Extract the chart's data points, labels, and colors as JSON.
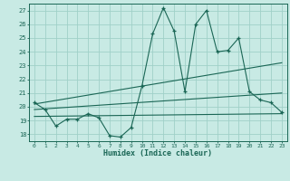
{
  "title": "",
  "xlabel": "Humidex (Indice chaleur)",
  "ylabel": "",
  "bg_color": "#c8eae4",
  "grid_color": "#a0d0c8",
  "line_color": "#1a6655",
  "xlim": [
    -0.5,
    23.5
  ],
  "ylim": [
    17.5,
    27.5
  ],
  "xticks": [
    0,
    1,
    2,
    3,
    4,
    5,
    6,
    7,
    8,
    9,
    10,
    11,
    12,
    13,
    14,
    15,
    16,
    17,
    18,
    19,
    20,
    21,
    22,
    23
  ],
  "yticks": [
    18,
    19,
    20,
    21,
    22,
    23,
    24,
    25,
    26,
    27
  ],
  "series_main": {
    "x": [
      0,
      1,
      2,
      3,
      4,
      5,
      6,
      7,
      8,
      9,
      10,
      11,
      12,
      13,
      14,
      15,
      16,
      17,
      18,
      19,
      20,
      21,
      22,
      23
    ],
    "y": [
      20.3,
      19.8,
      18.6,
      19.1,
      19.1,
      19.5,
      19.2,
      17.9,
      17.8,
      18.5,
      21.5,
      25.3,
      27.2,
      25.5,
      21.1,
      26.0,
      27.0,
      24.0,
      24.1,
      25.0,
      21.1,
      20.5,
      20.3,
      19.6
    ]
  },
  "series_line1": {
    "x": [
      0,
      23
    ],
    "y": [
      20.2,
      23.2
    ]
  },
  "series_line2": {
    "x": [
      0,
      23
    ],
    "y": [
      19.3,
      19.5
    ]
  },
  "series_line3": {
    "x": [
      0,
      23
    ],
    "y": [
      19.8,
      21.0
    ]
  }
}
